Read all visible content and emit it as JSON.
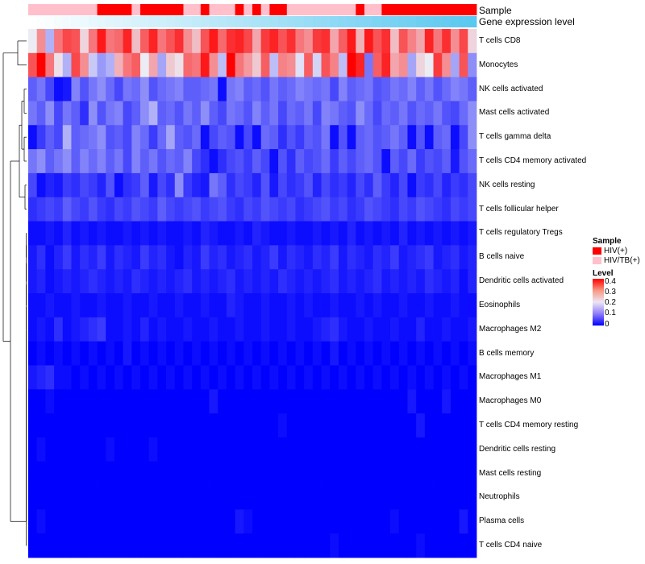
{
  "chart_data": {
    "type": "heatmap",
    "n_samples": 52,
    "annotation_rows": [
      "Sample",
      "Gene expression level"
    ],
    "rows": [
      "T cells CD8",
      "Monocytes",
      "NK cells activated",
      "Mast cells activated",
      "T cells gamma delta",
      "T cells CD4 memory activated",
      "NK cells resting",
      "T cells follicular helper",
      "T cells regulatory  Tregs",
      "B cells naive",
      "Dendritic cells activated",
      "Eosinophils",
      "Macrophages M2",
      "B cells memory",
      "Macrophages M1",
      "Macrophages M0",
      "T cells CD4 memory resting",
      "Dendritic cells resting",
      "Mast cells resting",
      "Neutrophils",
      "Plasma cells",
      "T cells CD4 naive"
    ],
    "sample_groups": [
      "HIV/TB(+)",
      "HIV/TB(+)",
      "HIV/TB(+)",
      "HIV/TB(+)",
      "HIV/TB(+)",
      "HIV/TB(+)",
      "HIV/TB(+)",
      "HIV/TB(+)",
      "HIV(+)",
      "HIV(+)",
      "HIV(+)",
      "HIV(+)",
      "HIV/TB(+)",
      "HIV(+)",
      "HIV(+)",
      "HIV(+)",
      "HIV(+)",
      "HIV(+)",
      "HIV/TB(+)",
      "HIV/TB(+)",
      "HIV(+)",
      "HIV/TB(+)",
      "HIV/TB(+)",
      "HIV/TB(+)",
      "HIV(+)",
      "HIV/TB(+)",
      "HIV(+)",
      "HIV/TB(+)",
      "HIV(+)",
      "HIV(+)",
      "HIV/TB(+)",
      "HIV/TB(+)",
      "HIV/TB(+)",
      "HIV/TB(+)",
      "HIV/TB(+)",
      "HIV/TB(+)",
      "HIV/TB(+)",
      "HIV/TB(+)",
      "HIV(+)",
      "HIV/TB(+)",
      "HIV/TB(+)",
      "HIV(+)",
      "HIV(+)",
      "HIV(+)",
      "HIV(+)",
      "HIV(+)",
      "HIV(+)",
      "HIV(+)",
      "HIV(+)",
      "HIV(+)",
      "HIV(+)",
      "HIV(+)"
    ],
    "expression_level_gradient": [
      "#ffffff",
      "#5bc8f0"
    ],
    "values": [
      [
        0.2,
        0.28,
        0.15,
        0.3,
        0.34,
        0.33,
        0.22,
        0.3,
        0.38,
        0.3,
        0.31,
        0.37,
        0.24,
        0.32,
        0.37,
        0.3,
        0.33,
        0.36,
        0.28,
        0.24,
        0.33,
        0.38,
        0.31,
        0.36,
        0.37,
        0.34,
        0.26,
        0.35,
        0.37,
        0.33,
        0.36,
        0.3,
        0.28,
        0.35,
        0.36,
        0.26,
        0.32,
        0.38,
        0.25,
        0.38,
        0.33,
        0.36,
        0.24,
        0.33,
        0.29,
        0.26,
        0.37,
        0.3,
        0.36,
        0.28,
        0.34,
        0.22
      ],
      [
        0.33,
        0.4,
        0.3,
        0.21,
        0.15,
        0.34,
        0.28,
        0.17,
        0.13,
        0.15,
        0.25,
        0.3,
        0.32,
        0.2,
        0.26,
        0.14,
        0.23,
        0.21,
        0.31,
        0.3,
        0.38,
        0.28,
        0.16,
        0.4,
        0.3,
        0.27,
        0.23,
        0.32,
        0.16,
        0.29,
        0.28,
        0.19,
        0.32,
        0.18,
        0.33,
        0.29,
        0.16,
        0.4,
        0.37,
        0.1,
        0.32,
        0.37,
        0.26,
        0.28,
        0.14,
        0.22,
        0.2,
        0.35,
        0.28,
        0.14,
        0.33,
        0.12
      ],
      [
        0.08,
        0.1,
        0.06,
        0.01,
        0.02,
        0.11,
        0.07,
        0.1,
        0.12,
        0.09,
        0.06,
        0.1,
        0.09,
        0.12,
        0.07,
        0.09,
        0.1,
        0.11,
        0.08,
        0.08,
        0.09,
        0.1,
        0.01,
        0.1,
        0.11,
        0.08,
        0.09,
        0.07,
        0.1,
        0.08,
        0.09,
        0.11,
        0.1,
        0.09,
        0.1,
        0.06,
        0.11,
        0.08,
        0.09,
        0.1,
        0.07,
        0.08,
        0.1,
        0.09,
        0.11,
        0.08,
        0.1,
        0.07,
        0.09,
        0.11,
        0.1,
        0.08
      ],
      [
        0.1,
        0.08,
        0.12,
        0.06,
        0.1,
        0.08,
        0.04,
        0.12,
        0.07,
        0.1,
        0.11,
        0.06,
        0.08,
        0.12,
        0.15,
        0.08,
        0.09,
        0.07,
        0.1,
        0.08,
        0.12,
        0.08,
        0.06,
        0.1,
        0.09,
        0.07,
        0.11,
        0.08,
        0.1,
        0.06,
        0.09,
        0.08,
        0.1,
        0.06,
        0.11,
        0.1,
        0.08,
        0.07,
        0.12,
        0.09,
        0.06,
        0.09,
        0.08,
        0.1,
        0.07,
        0.09,
        0.08,
        0.1,
        0.07,
        0.06,
        0.09,
        0.12
      ],
      [
        0.01,
        0.05,
        0.08,
        0.06,
        0.15,
        0.08,
        0.09,
        0.1,
        0.12,
        0.07,
        0.08,
        0.06,
        0.11,
        0.09,
        0.05,
        0.09,
        0.14,
        0.08,
        0.07,
        0.09,
        0.01,
        0.06,
        0.08,
        0.07,
        0.01,
        0.06,
        0.01,
        0.09,
        0.08,
        0.04,
        0.07,
        0.05,
        0.08,
        0.07,
        0.1,
        0.01,
        0.07,
        0.01,
        0.08,
        0.09,
        0.07,
        0.08,
        0.1,
        0.08,
        0.01,
        0.07,
        0.01,
        0.08,
        0.09,
        0.01,
        0.06,
        0.12
      ],
      [
        0.1,
        0.12,
        0.08,
        0.1,
        0.12,
        0.08,
        0.11,
        0.09,
        0.11,
        0.08,
        0.1,
        0.06,
        0.11,
        0.08,
        0.1,
        0.07,
        0.09,
        0.08,
        0.11,
        0.06,
        0.04,
        0.01,
        0.04,
        0.06,
        0.07,
        0.05,
        0.08,
        0.06,
        0.01,
        0.07,
        0.04,
        0.08,
        0.06,
        0.07,
        0.09,
        0.05,
        0.08,
        0.06,
        0.08,
        0.09,
        0.07,
        0.01,
        0.08,
        0.06,
        0.09,
        0.05,
        0.07,
        0.06,
        0.08,
        0.02,
        0.07,
        0.09
      ],
      [
        0.06,
        0.01,
        0.03,
        0.02,
        0.05,
        0.04,
        0.06,
        0.05,
        0.03,
        0.07,
        0.01,
        0.04,
        0.05,
        0.08,
        0.02,
        0.06,
        0.04,
        0.12,
        0.05,
        0.03,
        0.02,
        0.1,
        0.08,
        0.04,
        0.06,
        0.05,
        0.03,
        0.07,
        0.02,
        0.06,
        0.04,
        0.05,
        0.07,
        0.03,
        0.06,
        0.04,
        0.05,
        0.03,
        0.06,
        0.04,
        0.08,
        0.05,
        0.03,
        0.06,
        0.01,
        0.05,
        0.04,
        0.06,
        0.03,
        0.05,
        0.04,
        0.06
      ],
      [
        0.04,
        0.05,
        0.06,
        0.05,
        0.08,
        0.06,
        0.05,
        0.07,
        0.05,
        0.04,
        0.06,
        0.05,
        0.07,
        0.06,
        0.05,
        0.08,
        0.06,
        0.05,
        0.06,
        0.07,
        0.05,
        0.06,
        0.07,
        0.05,
        0.04,
        0.06,
        0.05,
        0.07,
        0.06,
        0.05,
        0.06,
        0.04,
        0.05,
        0.06,
        0.07,
        0.05,
        0.06,
        0.04,
        0.05,
        0.07,
        0.06,
        0.05,
        0.04,
        0.06,
        0.05,
        0.07,
        0.06,
        0.05,
        0.04,
        0.06,
        0.05,
        0.06
      ],
      [
        0.01,
        0.01,
        0.02,
        0.01,
        0.03,
        0.01,
        0.02,
        0.01,
        0.02,
        0.01,
        0.01,
        0.02,
        0.01,
        0.02,
        0.01,
        0.02,
        0.01,
        0.01,
        0.02,
        0.01,
        0.03,
        0.02,
        0.01,
        0.01,
        0.02,
        0.01,
        0.03,
        0.02,
        0.01,
        0.01,
        0.02,
        0.01,
        0.01,
        0.02,
        0.01,
        0.02,
        0.01,
        0.03,
        0.01,
        0.02,
        0.01,
        0.02,
        0.01,
        0.03,
        0.01,
        0.02,
        0.01,
        0.02,
        0.01,
        0.02,
        0.01,
        0.02
      ],
      [
        0.02,
        0.04,
        0.01,
        0.03,
        0.05,
        0.02,
        0.04,
        0.03,
        0.05,
        0.02,
        0.04,
        0.03,
        0.02,
        0.05,
        0.03,
        0.04,
        0.02,
        0.01,
        0.03,
        0.02,
        0.05,
        0.03,
        0.04,
        0.02,
        0.03,
        0.04,
        0.02,
        0.03,
        0.05,
        0.02,
        0.04,
        0.03,
        0.02,
        0.04,
        0.03,
        0.05,
        0.02,
        0.04,
        0.03,
        0.02,
        0.04,
        0.03,
        0.05,
        0.02,
        0.03,
        0.04,
        0.05,
        0.02,
        0.03,
        0.04,
        0.02,
        0.03
      ],
      [
        0.02,
        0.03,
        0.01,
        0.02,
        0.03,
        0.02,
        0.03,
        0.04,
        0.03,
        0.02,
        0.03,
        0.02,
        0.04,
        0.03,
        0.02,
        0.03,
        0.02,
        0.03,
        0.04,
        0.02,
        0.03,
        0.02,
        0.03,
        0.04,
        0.02,
        0.03,
        0.02,
        0.03,
        0.02,
        0.04,
        0.03,
        0.02,
        0.03,
        0.02,
        0.03,
        0.04,
        0.02,
        0.03,
        0.02,
        0.03,
        0.04,
        0.02,
        0.03,
        0.02,
        0.03,
        0.02,
        0.04,
        0.03,
        0.02,
        0.03,
        0.01,
        0.03
      ],
      [
        0.01,
        0.01,
        0.02,
        0.01,
        0.01,
        0.02,
        0.01,
        0.01,
        0.02,
        0.01,
        0.01,
        0.02,
        0.01,
        0.01,
        0.02,
        0.01,
        0.01,
        0.02,
        0.01,
        0.01,
        0.02,
        0.01,
        0.01,
        0.03,
        0.02,
        0.01,
        0.01,
        0.02,
        0.01,
        0.01,
        0.02,
        0.01,
        0.02,
        0.01,
        0.01,
        0.02,
        0.01,
        0.01,
        0.02,
        0.01,
        0.02,
        0.01,
        0.01,
        0.02,
        0.01,
        0.01,
        0.02,
        0.01,
        0.01,
        0.02,
        0.01,
        0.01
      ],
      [
        0.01,
        0.02,
        0.01,
        0.04,
        0.01,
        0.02,
        0.03,
        0.04,
        0.05,
        0.01,
        0.01,
        0.02,
        0.01,
        0.03,
        0.01,
        0.02,
        0.01,
        0.01,
        0.02,
        0.01,
        0.01,
        0.02,
        0.01,
        0.01,
        0.02,
        0.01,
        0.01,
        0.02,
        0.01,
        0.01,
        0.02,
        0.01,
        0.01,
        0.02,
        0.03,
        0.04,
        0.02,
        0.01,
        0.01,
        0.02,
        0.01,
        0.01,
        0.02,
        0.01,
        0.01,
        0.03,
        0.01,
        0.01,
        0.02,
        0.01,
        0.01,
        0.02
      ],
      [
        0.0,
        0.01,
        0.0,
        0.01,
        0.0,
        0.01,
        0.0,
        0.01,
        0.0,
        0.01,
        0.0,
        0.02,
        0.0,
        0.01,
        0.0,
        0.01,
        0.0,
        0.01,
        0.0,
        0.01,
        0.0,
        0.01,
        0.0,
        0.01,
        0.0,
        0.01,
        0.0,
        0.01,
        0.0,
        0.01,
        0.0,
        0.01,
        0.0,
        0.01,
        0.0,
        0.02,
        0.0,
        0.01,
        0.0,
        0.01,
        0.0,
        0.01,
        0.0,
        0.01,
        0.0,
        0.01,
        0.0,
        0.01,
        0.0,
        0.01,
        0.0,
        0.01
      ],
      [
        0.02,
        0.03,
        0.04,
        0.01,
        0.01,
        0.0,
        0.01,
        0.0,
        0.01,
        0.0,
        0.01,
        0.0,
        0.01,
        0.0,
        0.01,
        0.0,
        0.01,
        0.0,
        0.01,
        0.0,
        0.01,
        0.0,
        0.01,
        0.0,
        0.01,
        0.0,
        0.01,
        0.0,
        0.01,
        0.0,
        0.01,
        0.0,
        0.01,
        0.0,
        0.01,
        0.0,
        0.01,
        0.0,
        0.01,
        0.0,
        0.01,
        0.0,
        0.01,
        0.0,
        0.01,
        0.0,
        0.01,
        0.0,
        0.01,
        0.0,
        0.01,
        0.0
      ],
      [
        0.0,
        0.0,
        0.01,
        0.0,
        0.0,
        0.0,
        0.0,
        0.0,
        0.0,
        0.0,
        0.0,
        0.0,
        0.0,
        0.0,
        0.0,
        0.0,
        0.0,
        0.0,
        0.0,
        0.0,
        0.0,
        0.02,
        0.0,
        0.0,
        0.0,
        0.0,
        0.0,
        0.0,
        0.0,
        0.0,
        0.0,
        0.0,
        0.0,
        0.0,
        0.0,
        0.0,
        0.0,
        0.0,
        0.0,
        0.0,
        0.0,
        0.0,
        0.0,
        0.0,
        0.02,
        0.0,
        0.0,
        0.0,
        0.02,
        0.0,
        0.0,
        0.0
      ],
      [
        0.0,
        0.0,
        0.0,
        0.0,
        0.0,
        0.0,
        0.0,
        0.0,
        0.0,
        0.0,
        0.0,
        0.0,
        0.0,
        0.0,
        0.0,
        0.0,
        0.0,
        0.0,
        0.0,
        0.0,
        0.0,
        0.0,
        0.0,
        0.0,
        0.0,
        0.0,
        0.0,
        0.0,
        0.0,
        0.01,
        0.0,
        0.0,
        0.0,
        0.0,
        0.0,
        0.0,
        0.0,
        0.0,
        0.0,
        0.0,
        0.0,
        0.0,
        0.0,
        0.0,
        0.0,
        0.02,
        0.0,
        0.0,
        0.0,
        0.0,
        0.0,
        0.0
      ],
      [
        0.0,
        0.01,
        0.0,
        0.0,
        0.0,
        0.0,
        0.0,
        0.0,
        0.0,
        0.01,
        0.0,
        0.0,
        0.0,
        0.0,
        0.01,
        0.0,
        0.0,
        0.0,
        0.0,
        0.0,
        0.0,
        0.0,
        0.0,
        0.0,
        0.0,
        0.0,
        0.0,
        0.0,
        0.0,
        0.0,
        0.0,
        0.0,
        0.0,
        0.0,
        0.0,
        0.0,
        0.0,
        0.0,
        0.0,
        0.0,
        0.0,
        0.0,
        0.0,
        0.0,
        0.0,
        0.0,
        0.0,
        0.0,
        0.0,
        0.0,
        0.0,
        0.0
      ],
      [
        0.0,
        0.0,
        0.0,
        0.0,
        0.0,
        0.0,
        0.0,
        0.0,
        0.0,
        0.0,
        0.0,
        0.0,
        0.0,
        0.0,
        0.0,
        0.0,
        0.0,
        0.0,
        0.0,
        0.0,
        0.0,
        0.0,
        0.0,
        0.0,
        0.0,
        0.0,
        0.0,
        0.0,
        0.0,
        0.0,
        0.0,
        0.0,
        0.0,
        0.0,
        0.0,
        0.0,
        0.0,
        0.0,
        0.0,
        0.0,
        0.0,
        0.0,
        0.0,
        0.0,
        0.0,
        0.0,
        0.0,
        0.0,
        0.0,
        0.0,
        0.0,
        0.0
      ],
      [
        0.0,
        0.0,
        0.0,
        0.0,
        0.0,
        0.0,
        0.0,
        0.0,
        0.0,
        0.0,
        0.0,
        0.0,
        0.0,
        0.0,
        0.0,
        0.0,
        0.0,
        0.0,
        0.0,
        0.0,
        0.0,
        0.0,
        0.0,
        0.0,
        0.0,
        0.0,
        0.0,
        0.0,
        0.0,
        0.0,
        0.0,
        0.0,
        0.0,
        0.0,
        0.0,
        0.0,
        0.0,
        0.0,
        0.0,
        0.0,
        0.0,
        0.0,
        0.0,
        0.0,
        0.0,
        0.0,
        0.0,
        0.0,
        0.0,
        0.0,
        0.0,
        0.0
      ],
      [
        0.0,
        0.01,
        0.0,
        0.0,
        0.0,
        0.0,
        0.0,
        0.0,
        0.0,
        0.0,
        0.0,
        0.0,
        0.0,
        0.0,
        0.0,
        0.0,
        0.0,
        0.0,
        0.0,
        0.0,
        0.0,
        0.0,
        0.0,
        0.0,
        0.02,
        0.01,
        0.0,
        0.0,
        0.0,
        0.0,
        0.0,
        0.0,
        0.0,
        0.0,
        0.0,
        0.0,
        0.0,
        0.0,
        0.0,
        0.0,
        0.0,
        0.0,
        0.01,
        0.0,
        0.0,
        0.0,
        0.0,
        0.0,
        0.0,
        0.0,
        0.02,
        0.0
      ],
      [
        0.0,
        0.0,
        0.0,
        0.0,
        0.0,
        0.0,
        0.0,
        0.0,
        0.0,
        0.0,
        0.0,
        0.0,
        0.0,
        0.0,
        0.0,
        0.0,
        0.0,
        0.0,
        0.0,
        0.0,
        0.0,
        0.0,
        0.0,
        0.0,
        0.0,
        0.0,
        0.0,
        0.0,
        0.0,
        0.0,
        0.0,
        0.0,
        0.0,
        0.0,
        0.0,
        0.01,
        0.0,
        0.0,
        0.0,
        0.0,
        0.0,
        0.0,
        0.0,
        0.0,
        0.0,
        0.01,
        0.0,
        0.0,
        0.0,
        0.0,
        0.0,
        0.0
      ]
    ],
    "legend": {
      "sample_title": "Sample",
      "sample_items": [
        {
          "label": "HIV(+)",
          "color": "#ff0000"
        },
        {
          "label": "HIV/TB(+)",
          "color": "#ffc0cb"
        }
      ],
      "level_title": "Level",
      "level_ticks": [
        "0.4",
        "0.3",
        "0.2",
        "0.1",
        "0"
      ],
      "level_range": [
        0,
        0.4
      ],
      "level_colors": [
        "#0000ff",
        "#ececf5",
        "#ff0000"
      ]
    }
  }
}
